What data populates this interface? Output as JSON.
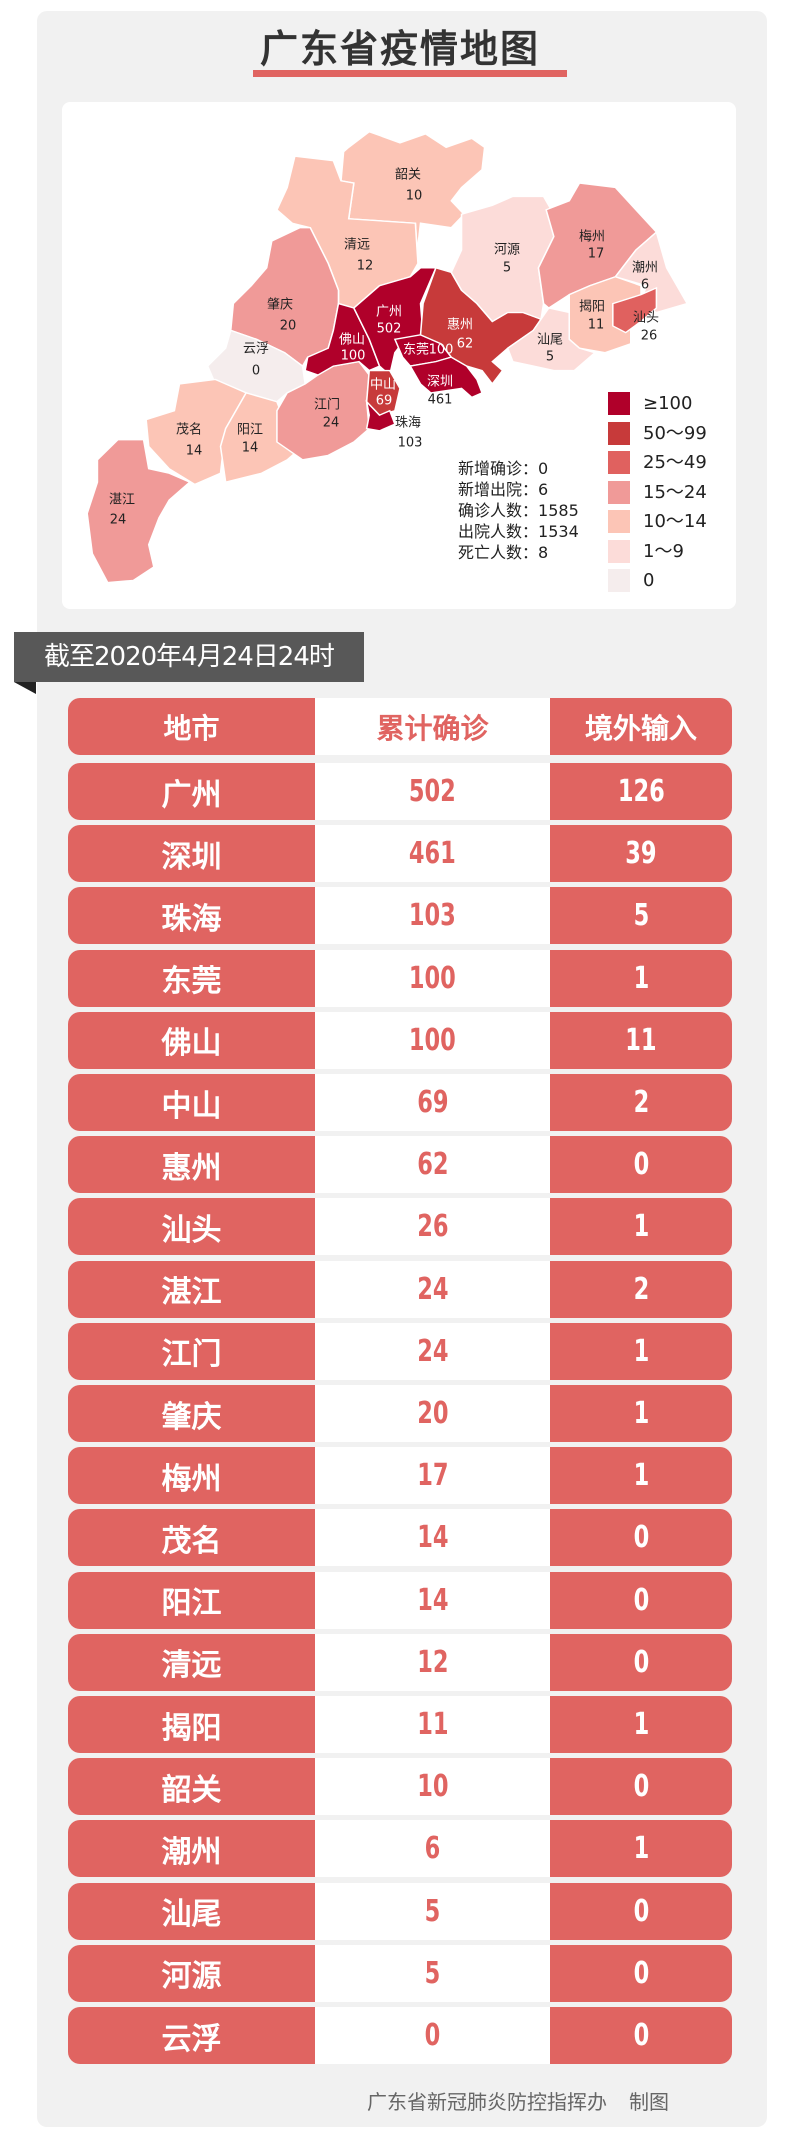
{
  "title": "广东省疫情地图",
  "colors": {
    "accent": "#e06461",
    "panel": "#f1f1f1",
    "date_bar": "#585858"
  },
  "legend": [
    {
      "label": "≥100",
      "min": 100,
      "color": "#b0002a"
    },
    {
      "label": "50～99",
      "min": 50,
      "color": "#c73a3a"
    },
    {
      "label": "25～49",
      "min": 25,
      "color": "#e0615f"
    },
    {
      "label": "15～24",
      "min": 15,
      "color": "#f09a98"
    },
    {
      "label": "10～14",
      "min": 10,
      "color": "#fcc5b6"
    },
    {
      "label": "1～9",
      "min": 1,
      "color": "#fcdcd9"
    },
    {
      "label": "0",
      "min": 0,
      "color": "#f5eded"
    }
  ],
  "stats": [
    {
      "label": "新增确诊",
      "value": "0"
    },
    {
      "label": "新增出院",
      "value": "6"
    },
    {
      "label": "确诊人数",
      "value": "1585"
    },
    {
      "label": "出院人数",
      "value": "1534"
    },
    {
      "label": "死亡人数",
      "value": "8"
    }
  ],
  "map": {
    "regions": [
      {
        "name": "韶关",
        "value": "10"
      },
      {
        "name": "清远",
        "value": "12"
      },
      {
        "name": "肇庆",
        "value": "20"
      },
      {
        "name": "云浮",
        "value": "0"
      },
      {
        "name": "茂名",
        "value": "14"
      },
      {
        "name": "阳江",
        "value": "14"
      },
      {
        "name": "江门",
        "value": "24"
      },
      {
        "name": "湛江",
        "value": "24"
      },
      {
        "name": "佛山",
        "value": "100"
      },
      {
        "name": "广州",
        "value": "502"
      },
      {
        "name": "中山",
        "value": "69"
      },
      {
        "name": "珠海",
        "value": "103"
      },
      {
        "name": "东莞",
        "value": "100"
      },
      {
        "name": "深圳",
        "value": "461"
      },
      {
        "name": "惠州",
        "value": "62"
      },
      {
        "name": "河源",
        "value": "5"
      },
      {
        "name": "梅州",
        "value": "17"
      },
      {
        "name": "潮州",
        "value": "6"
      },
      {
        "name": "揭阳",
        "value": "11"
      },
      {
        "name": "汕头",
        "value": "26"
      },
      {
        "name": "汕尾",
        "value": "5"
      }
    ]
  },
  "date_label": "截至2020年4月24日24时",
  "table": {
    "headers": [
      "地市",
      "累计确诊",
      "境外输入"
    ],
    "rows": [
      [
        "广州",
        "502",
        "126"
      ],
      [
        "深圳",
        "461",
        "39"
      ],
      [
        "珠海",
        "103",
        "5"
      ],
      [
        "东莞",
        "100",
        "1"
      ],
      [
        "佛山",
        "100",
        "11"
      ],
      [
        "中山",
        "69",
        "2"
      ],
      [
        "惠州",
        "62",
        "0"
      ],
      [
        "汕头",
        "26",
        "1"
      ],
      [
        "湛江",
        "24",
        "2"
      ],
      [
        "江门",
        "24",
        "1"
      ],
      [
        "肇庆",
        "20",
        "1"
      ],
      [
        "梅州",
        "17",
        "1"
      ],
      [
        "茂名",
        "14",
        "0"
      ],
      [
        "阳江",
        "14",
        "0"
      ],
      [
        "清远",
        "12",
        "0"
      ],
      [
        "揭阳",
        "11",
        "1"
      ],
      [
        "韶关",
        "10",
        "0"
      ],
      [
        "潮州",
        "6",
        "1"
      ],
      [
        "汕尾",
        "5",
        "0"
      ],
      [
        "河源",
        "5",
        "0"
      ],
      [
        "云浮",
        "0",
        "0"
      ]
    ]
  },
  "footer": {
    "org": "广东省新冠肺炎防控指挥办",
    "suffix": "制图"
  }
}
